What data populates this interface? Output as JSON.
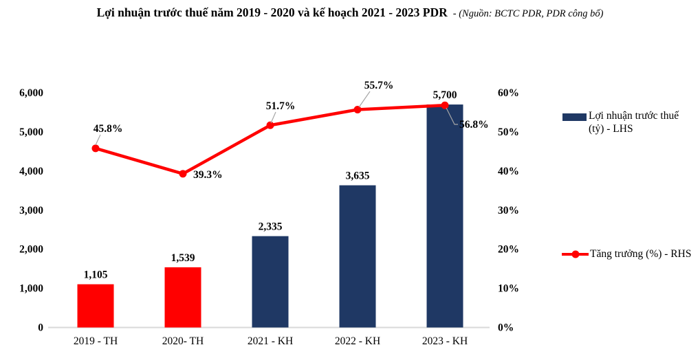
{
  "title": {
    "main": "Lợi nhuận trước thuế năm 2019 - 2020 và kế hoạch 2021 - 2023 PDR",
    "source": "- (Nguồn: BCTC PDR, PDR công bố)"
  },
  "legend": {
    "bars_line1": "Lợi nhuận trước thuế",
    "bars_line2": "(tỷ) - LHS",
    "bars_full": "Lợi nhuận trước thuế (tỷ) - LHS",
    "line_label": "Tăng trưởng (%) - RHS"
  },
  "colors": {
    "red": "#FF0000",
    "navy": "#1F3864",
    "axis_line": "#D9D9D9",
    "leader": "#A6A6A6",
    "text": "#000000"
  },
  "chart_data": {
    "type": "combo-bar-line",
    "title": "Lợi nhuận trước thuế năm 2019 - 2020 và kế hoạch 2021 - 2023 PDR",
    "subtitle": "- (Nguồn: BCTC PDR, PDR công bố)",
    "categories": [
      "2019 - TH",
      "2020- TH",
      "2021 - KH",
      "2022 - KH",
      "2023 - KH"
    ],
    "series": [
      {
        "name": "Lợi nhuận trước thuế (tỷ) - LHS",
        "type": "bar",
        "axis": "left",
        "values": [
          1105,
          1539,
          2335,
          3635,
          5700
        ],
        "labels": [
          "1,105",
          "1,539",
          "2,335",
          "3,635",
          "5,700"
        ],
        "bar_colors": [
          "#FF0000",
          "#FF0000",
          "#1F3864",
          "#1F3864",
          "#1F3864"
        ]
      },
      {
        "name": "Tăng trưởng (%) - RHS",
        "type": "line",
        "axis": "right",
        "values": [
          45.8,
          39.3,
          51.7,
          55.7,
          56.8
        ],
        "labels": [
          "45.8%",
          "39.3%",
          "51.7%",
          "55.7%",
          "56.8%"
        ],
        "color": "#FF0000"
      }
    ],
    "left_axis": {
      "min": 0,
      "max": 6000,
      "step": 1000,
      "tick_labels": [
        "0",
        "1,000",
        "2,000",
        "3,000",
        "4,000",
        "5,000",
        "6,000"
      ]
    },
    "right_axis": {
      "min": 0,
      "max": 60,
      "step": 10,
      "tick_labels": [
        "0%",
        "10%",
        "20%",
        "30%",
        "40%",
        "50%",
        "60%"
      ]
    },
    "grid": false,
    "legend_position": "right"
  }
}
